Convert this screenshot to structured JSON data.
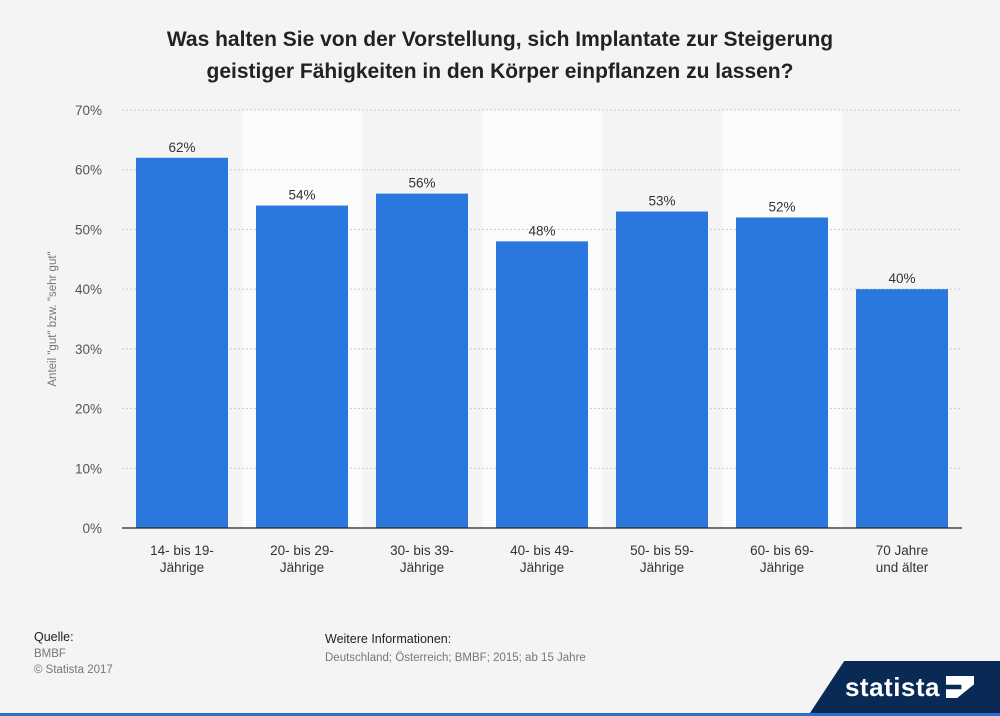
{
  "title": {
    "line1": "Was halten Sie von der Vorstellung, sich Implantate zur Steigerung",
    "line2": "geistiger Fähigkeiten in den Körper einpflanzen zu lassen?"
  },
  "chart_data": {
    "type": "bar",
    "categories": [
      [
        "14- bis 19-",
        "Jährige"
      ],
      [
        "20- bis 29-",
        "Jährige"
      ],
      [
        "30- bis 39-",
        "Jährige"
      ],
      [
        "40- bis 49-",
        "Jährige"
      ],
      [
        "50- bis 59-",
        "Jährige"
      ],
      [
        "60- bis 69-",
        "Jährige"
      ],
      [
        "70 Jahre",
        "und älter"
      ]
    ],
    "values": [
      62,
      54,
      56,
      48,
      53,
      52,
      40
    ],
    "value_labels": [
      "62%",
      "54%",
      "56%",
      "48%",
      "53%",
      "52%",
      "40%"
    ],
    "ylabel": "Anteil \"gut\" bzw. \"sehr gut\"",
    "ylim": [
      0,
      70
    ],
    "yticks": [
      0,
      10,
      20,
      30,
      40,
      50,
      60,
      70
    ],
    "ytick_labels": [
      "0%",
      "10%",
      "20%",
      "30%",
      "40%",
      "50%",
      "60%",
      "70%"
    ],
    "grid": true,
    "bar_color": "#2a77dd"
  },
  "footer": {
    "source_label": "Quelle:",
    "source": "BMBF",
    "copyright": "© Statista 2017",
    "info_label": "Weitere Informationen:",
    "info": "Deutschland; Österreich; BMBF; 2015; ab 15 Jahre"
  },
  "logo": {
    "text": "statista"
  }
}
